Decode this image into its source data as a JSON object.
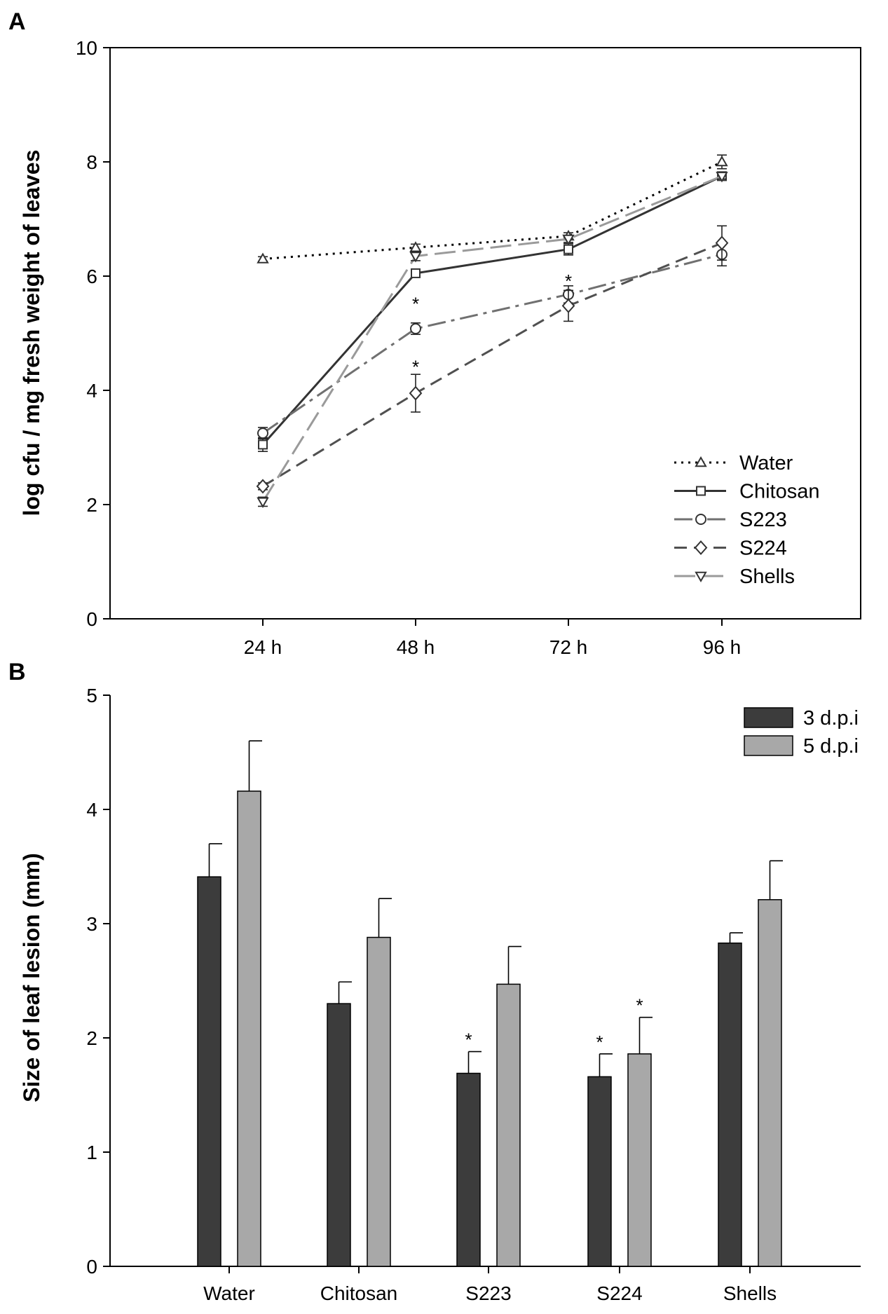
{
  "chart_data": [
    {
      "panel_label": "A",
      "type": "line",
      "title": "",
      "xlabel": "",
      "ylabel": "log cfu / mg fresh weight of leaves",
      "categories": [
        "24 h",
        "48 h",
        "72 h",
        "96 h"
      ],
      "ylim": [
        0,
        10
      ],
      "yticks": [
        "0",
        "2",
        "4",
        "6",
        "8",
        "10"
      ],
      "legend_position": "bottom-right",
      "series": [
        {
          "name": "Water",
          "marker": "triangle-up",
          "dash": "dotted",
          "color": "#000000",
          "values": [
            6.3,
            6.5,
            6.7,
            8.0
          ],
          "errors": [
            0.04,
            0.06,
            0.06,
            0.12
          ]
        },
        {
          "name": "Chitosan",
          "marker": "square",
          "dash": "solid",
          "color": "#333333",
          "values": [
            3.05,
            6.05,
            6.47,
            7.75
          ],
          "errors": [
            0.12,
            0.05,
            0.1,
            0.05
          ]
        },
        {
          "name": "S223",
          "marker": "circle",
          "dash": "dash-dot",
          "color": "#707070",
          "values": [
            3.25,
            5.08,
            5.68,
            6.38
          ],
          "errors": [
            0.1,
            0.1,
            0.15,
            0.2
          ]
        },
        {
          "name": "S224",
          "marker": "diamond",
          "dash": "dashed",
          "color": "#505050",
          "values": [
            2.32,
            3.95,
            5.48,
            6.58
          ],
          "errors": [
            0.06,
            0.33,
            0.27,
            0.3
          ]
        },
        {
          "name": "Shells",
          "marker": "triangle-down",
          "dash": "long-dash",
          "color": "#9a9a9a",
          "values": [
            2.05,
            6.35,
            6.65,
            7.75
          ],
          "errors": [
            0.08,
            0.08,
            0.06,
            0.05
          ]
        }
      ],
      "annotations": [
        {
          "text": "*",
          "category": "48 h",
          "y": 5.55
        },
        {
          "text": "*",
          "category": "48 h",
          "y": 4.45
        },
        {
          "text": "*",
          "category": "72 h",
          "y": 5.95
        }
      ]
    },
    {
      "panel_label": "B",
      "type": "bar",
      "title": "",
      "xlabel": "",
      "ylabel": "Size of leaf lesion (mm)",
      "categories": [
        "Water",
        "Chitosan",
        "S223",
        "S224",
        "Shells"
      ],
      "ylim": [
        0,
        5
      ],
      "yticks": [
        "0",
        "1",
        "2",
        "3",
        "4",
        "5"
      ],
      "legend_position": "top-right",
      "series": [
        {
          "name": "3 d.p.i",
          "color": "#3c3c3c",
          "values": [
            3.41,
            2.3,
            1.69,
            1.66,
            2.83
          ],
          "errors": [
            0.29,
            0.19,
            0.19,
            0.2,
            0.09
          ]
        },
        {
          "name": "5 d.p.i",
          "color": "#a8a8a8",
          "values": [
            4.16,
            2.88,
            2.47,
            1.86,
            3.21
          ],
          "errors": [
            0.44,
            0.34,
            0.33,
            0.32,
            0.34
          ]
        }
      ],
      "annotations": [
        {
          "text": "*",
          "category": "S223",
          "series": "3 d.p.i"
        },
        {
          "text": "*",
          "category": "S224",
          "series": "3 d.p.i"
        },
        {
          "text": "*",
          "category": "S224",
          "series": "5 d.p.i"
        }
      ]
    }
  ]
}
